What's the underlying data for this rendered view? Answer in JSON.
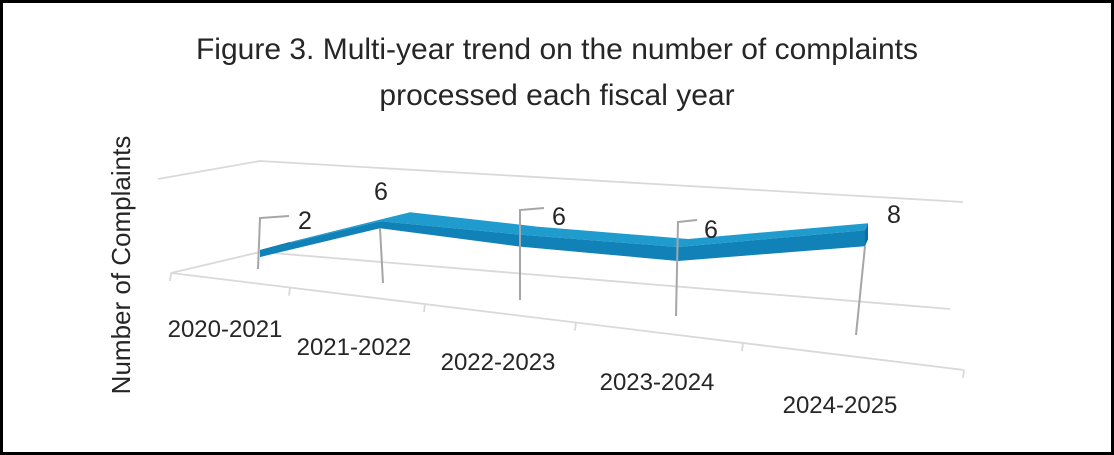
{
  "figure": {
    "title_lines": [
      "Figure 3. Multi-year trend on the number of complaints",
      "processed each fiscal year"
    ],
    "y_axis_label": "Number of Complaints"
  },
  "chart_data": {
    "type": "line",
    "style": "3d-ribbon",
    "title": "Figure 3. Multi-year trend on the number of complaints processed each fiscal year",
    "xlabel": "",
    "ylabel": "Number of Complaints",
    "categories": [
      "2020-2021",
      "2021-2022",
      "2022-2023",
      "2023-2024",
      "2024-2025"
    ],
    "values": [
      2,
      6,
      6,
      6,
      8
    ],
    "data_labels": [
      "2",
      "6",
      "6",
      "6",
      "8"
    ],
    "series": [
      {
        "name": "Number of Complaints",
        "values": [
          2,
          6,
          6,
          6,
          8
        ]
      }
    ],
    "ylim": [
      0,
      10
    ],
    "grid": true,
    "legend": false,
    "colors": {
      "ribbon_top": "#1f9bcd",
      "ribbon_front": "#1182b8",
      "ribbon_edge": "#0d6f9f",
      "gridline": "#d9d9d9",
      "callout_line": "#a6a6a6",
      "text": "#262626"
    }
  }
}
